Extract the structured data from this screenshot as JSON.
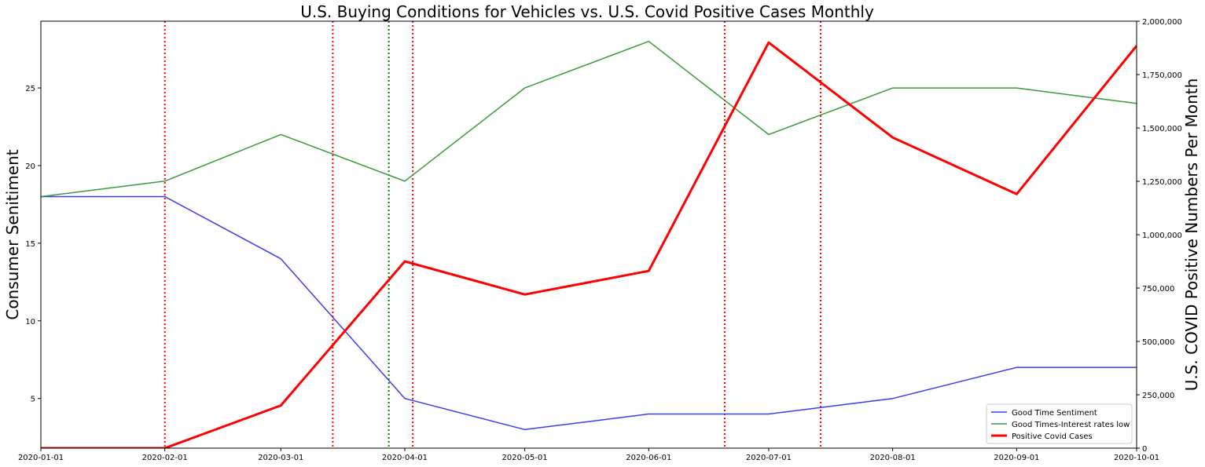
{
  "chart_data": {
    "type": "line",
    "title": "U.S. Buying Conditions for Vehicles vs. U.S. Covid Positive Cases Monthly",
    "xlabel": "",
    "ylabel": "Consumer Senitiment",
    "y2label": "U.S. COVID Positive Numbers Per Month",
    "x": [
      "2020-01-01",
      "2020-02-01",
      "2020-03-01",
      "2020-04-01",
      "2020-05-01",
      "2020-06-01",
      "2020-07-01",
      "2020-08-01",
      "2020-09-01",
      "2020-10-01"
    ],
    "x_ticks": [
      "2020-01-01",
      "2020-02-01",
      "2020-03-01",
      "2020-04-01",
      "2020-05-01",
      "2020-06-01",
      "2020-07-01",
      "2020-08-01",
      "2020-09-01",
      "2020-10-01"
    ],
    "ylim": [
      1.8,
      29.3
    ],
    "y_ticks": [
      5,
      10,
      15,
      20,
      25
    ],
    "y2lim": [
      0,
      2000000
    ],
    "y2_ticks": [
      "0",
      "250,000",
      "500,000",
      "750,000",
      "1,000,000",
      "1,250,000",
      "1,500,000",
      "1,750,000",
      "2,000,000"
    ],
    "series": [
      {
        "name": "Good Time Sentiment",
        "axis": "left",
        "color": "#3c3cf0",
        "width": 1.5,
        "values": [
          18,
          18,
          14,
          5,
          3,
          4,
          4,
          5,
          7,
          7
        ]
      },
      {
        "name": "Good Times-Interest rates low",
        "axis": "left",
        "color": "#3a9a3a",
        "width": 1.5,
        "values": [
          18,
          19,
          22,
          19,
          25,
          28,
          22,
          25,
          25,
          24
        ]
      },
      {
        "name": "Positive Covid Cases",
        "axis": "right",
        "color": "#ff0000",
        "width": 3,
        "values": [
          0,
          0,
          200000,
          875000,
          720000,
          830000,
          1900000,
          1455000,
          1190000,
          1885000
        ]
      }
    ],
    "vlines": [
      {
        "date": "2020-02-01",
        "color": "#ff0000"
      },
      {
        "date": "2020-03-14",
        "color": "#ff0000"
      },
      {
        "date": "2020-03-28",
        "color": "#008000"
      },
      {
        "date": "2020-04-03",
        "color": "#ff0000"
      },
      {
        "date": "2020-06-20",
        "color": "#ff0000"
      },
      {
        "date": "2020-07-14",
        "color": "#ff0000"
      }
    ],
    "grid": false,
    "legend_position": "bottom-right"
  }
}
